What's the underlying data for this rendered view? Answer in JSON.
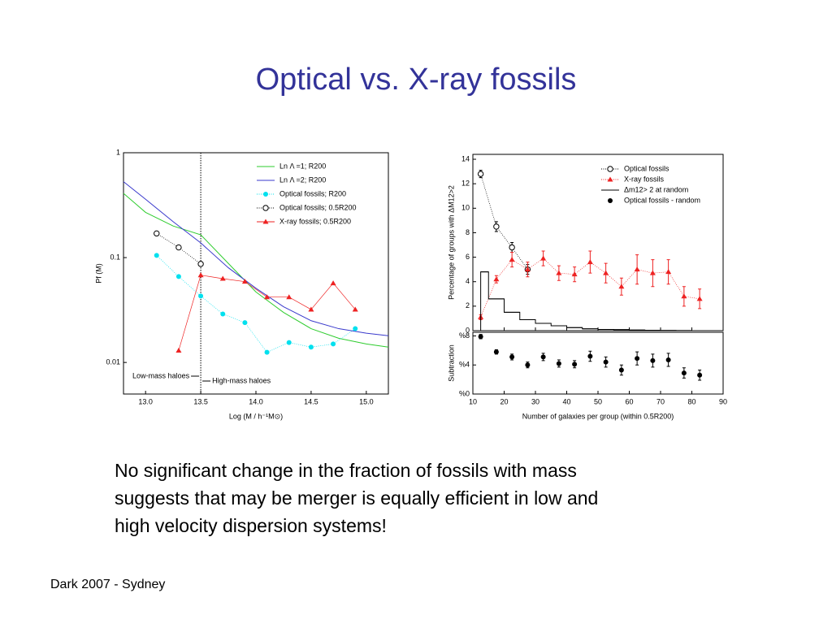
{
  "title": "Optical vs. X-ray fossils",
  "body": [
    "No significant change in the fraction of fossils with mass",
    "suggests that may be merger is equally efficient in low and",
    "high velocity dispersion systems!"
  ],
  "footer": "Dark 2007 - Sydney",
  "chart_data": [
    {
      "type": "line",
      "x_label": "Log (M / h⁻¹M⊙)",
      "y_label": "Pf (M)",
      "ylog": true,
      "xlim": [
        12.8,
        15.2
      ],
      "xticks": [
        {
          "value": 13,
          "label": "13.0"
        },
        {
          "value": 13.5,
          "label": "13.5"
        },
        {
          "value": 14,
          "label": "14.0"
        },
        {
          "value": 14.5,
          "label": "14.5"
        },
        {
          "value": 15,
          "label": "15.0"
        }
      ],
      "ylim": [
        0.005,
        1
      ],
      "yticks": [
        0.01,
        0.1,
        1
      ],
      "legend": "upper right",
      "vline": 13.5,
      "annotations": [
        "Low-mass haloes",
        "High-mass haloes"
      ],
      "series": [
        {
          "name": "Ln Λ =1; R200",
          "color": "#2ecc2e",
          "line": "solid",
          "marker": "none",
          "x": [
            12.8,
            13.0,
            13.25,
            13.5,
            13.75,
            14.0,
            14.25,
            14.5,
            14.75,
            15.0,
            15.2
          ],
          "values": [
            0.41,
            0.27,
            0.2,
            0.165,
            0.088,
            0.047,
            0.03,
            0.021,
            0.017,
            0.015,
            0.014
          ]
        },
        {
          "name": "Ln Λ =2; R200",
          "color": "#3a3acc",
          "line": "solid",
          "marker": "none",
          "x": [
            12.8,
            13.0,
            13.25,
            13.5,
            13.75,
            14.0,
            14.25,
            14.5,
            14.75,
            15.0,
            15.2
          ],
          "values": [
            0.53,
            0.36,
            0.22,
            0.138,
            0.08,
            0.051,
            0.034,
            0.025,
            0.021,
            0.019,
            0.018
          ]
        },
        {
          "name": "Optical fossils; R200",
          "color": "#00e0ee",
          "line": "dotted",
          "marker": "circle",
          "x": [
            13.1,
            13.3,
            13.5,
            13.7,
            13.9,
            14.1,
            14.3,
            14.5,
            14.7,
            14.9
          ],
          "values": [
            0.105,
            0.066,
            0.043,
            0.029,
            0.024,
            0.0125,
            0.0155,
            0.014,
            0.015,
            0.021
          ]
        },
        {
          "name": "Optical fossils; 0.5R200",
          "color": "#000000",
          "line": "dotted",
          "marker": "open-circle",
          "x": [
            13.1,
            13.3,
            13.5
          ],
          "values": [
            0.17,
            0.125,
            0.087
          ]
        },
        {
          "name": "X-ray fossils; 0.5R200",
          "color": "#ee2222",
          "line": "solid",
          "marker": "triangle",
          "x": [
            13.3,
            13.5,
            13.7,
            13.9,
            14.1,
            14.3,
            14.5,
            14.7,
            14.9
          ],
          "values": [
            0.013,
            0.068,
            0.063,
            0.059,
            0.042,
            0.042,
            0.032,
            0.057,
            0.032
          ]
        }
      ]
    },
    {
      "type": "line",
      "x_label": "Number of galaxies per group (within 0.5R200)",
      "y_label": "Percentage of groups with ΔM12>2",
      "lower_y_label": "Subtraction",
      "xlim": [
        10,
        90
      ],
      "xticks": [
        10,
        20,
        30,
        40,
        50,
        60,
        70,
        80,
        90
      ],
      "ylim": [
        0,
        14.4
      ],
      "yticks": [
        0,
        2,
        4,
        6,
        8,
        10,
        12,
        14
      ],
      "lower_ylim": [
        0,
        8.5
      ],
      "lower_yticks": [
        {
          "value": 0,
          "label": "%0"
        },
        {
          "value": 4,
          "label": "%4"
        },
        {
          "value": 8,
          "label": "%8"
        }
      ],
      "legend": "upper right",
      "series": [
        {
          "name": "Optical fossils",
          "color": "#000000",
          "line": "dotted",
          "marker": "open-circle",
          "x": [
            12.5,
            17.5,
            22.5,
            27.5
          ],
          "values": [
            12.8,
            8.5,
            6.8,
            5.0
          ],
          "errors": [
            0.3,
            0.4,
            0.4,
            0.4
          ]
        },
        {
          "name": "X-ray fossils",
          "color": "#ee2222",
          "line": "dotted",
          "marker": "triangle",
          "x": [
            12.5,
            17.5,
            22.5,
            27.5,
            32.5,
            37.5,
            42.5,
            47.5,
            52.5,
            57.5,
            62.5,
            67.5,
            72.5,
            77.5,
            82.5
          ],
          "values": [
            1.1,
            4.2,
            5.8,
            5.0,
            5.9,
            4.7,
            4.6,
            5.6,
            4.7,
            3.6,
            5.0,
            4.7,
            4.8,
            2.8,
            2.6
          ],
          "errors": [
            0.2,
            0.3,
            0.6,
            0.6,
            0.6,
            0.6,
            0.6,
            0.9,
            0.8,
            0.7,
            1.2,
            1.1,
            1.0,
            0.8,
            0.8
          ]
        },
        {
          "name": "Δm12> 2 at random",
          "color": "#000000",
          "line": "step",
          "marker": "none",
          "bins": [
            12.5,
            15,
            20,
            25,
            30,
            35,
            40,
            45,
            50,
            55,
            60,
            65,
            70,
            75,
            80
          ],
          "values": [
            4.8,
            2.6,
            1.5,
            0.9,
            0.6,
            0.4,
            0.25,
            0.15,
            0.1,
            0.08,
            0.05,
            0.03,
            0.02,
            0.01
          ]
        },
        {
          "name": "Optical fossils - random",
          "color": "#000000",
          "line": "none",
          "marker": "circle",
          "axis": "lower",
          "x": [
            12.5,
            17.5,
            22.5,
            27.5,
            32.5,
            37.5,
            42.5,
            47.5,
            52.5,
            57.5,
            62.5,
            67.5,
            72.5,
            77.5,
            82.5
          ],
          "values": [
            7.9,
            5.8,
            5.1,
            4.0,
            5.1,
            4.2,
            4.1,
            5.2,
            4.4,
            3.3,
            4.9,
            4.6,
            4.7,
            2.9,
            2.6
          ],
          "errors": [
            0.3,
            0.3,
            0.4,
            0.4,
            0.5,
            0.5,
            0.5,
            0.7,
            0.7,
            0.7,
            0.9,
            0.9,
            0.9,
            0.7,
            0.7
          ]
        }
      ]
    }
  ]
}
